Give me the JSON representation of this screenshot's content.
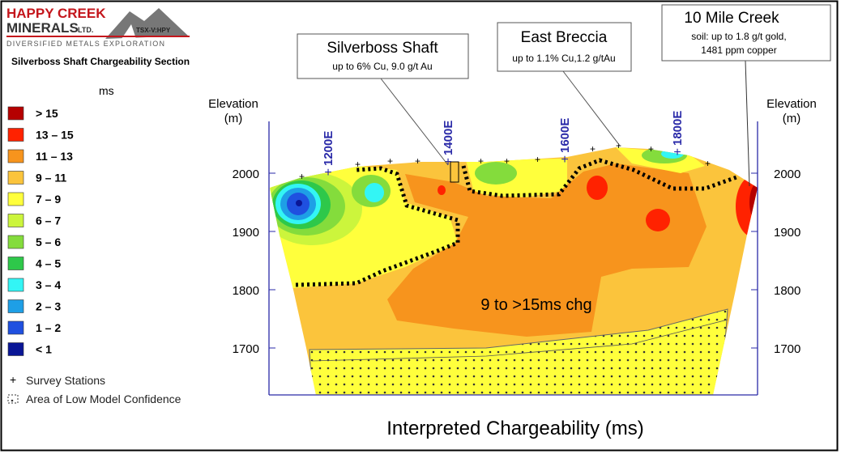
{
  "logo": {
    "line1": "HAPPY CREEK",
    "line2": "MINERALS",
    "suffix": "LTD.",
    "ticker": "TSX-V:HPY",
    "tagline": "DIVERSIFIED METALS EXPLORATION"
  },
  "section_title": "Silverboss Shaft Chargeability Section",
  "legend": {
    "unit": "ms",
    "items": [
      {
        "label": "> 15",
        "color": "#b50000"
      },
      {
        "label": "13 – 15",
        "color": "#ff2200"
      },
      {
        "label": "11 – 13",
        "color": "#f7941d"
      },
      {
        "label": "9 – 11",
        "color": "#fbc43c"
      },
      {
        "label": "7 – 9",
        "color": "#ffff3c"
      },
      {
        "label": "6 – 7",
        "color": "#ccf53c"
      },
      {
        "label": "5 – 6",
        "color": "#84dc3c"
      },
      {
        "label": "4 – 5",
        "color": "#2ec84a"
      },
      {
        "label": "3 – 4",
        "color": "#33f5f5"
      },
      {
        "label": "2 – 3",
        "color": "#1e9fe6"
      },
      {
        "label": "1 – 2",
        "color": "#1f50e0"
      },
      {
        "label": "< 1",
        "color": "#0a1696"
      }
    ],
    "survey_stations": "Survey Stations",
    "low_confidence": "Area of Low Model Confidence"
  },
  "elevation_label": "Elevation",
  "elevation_unit": "(m)",
  "elevation_ticks": [
    2000,
    1900,
    1800,
    1700
  ],
  "eastings": [
    "1200E",
    "1400E",
    "1600E",
    "1800E"
  ],
  "callouts": [
    {
      "title": "Silverboss Shaft",
      "lines": [
        "up to 6% Cu, 9.0 g/t Au"
      ]
    },
    {
      "title": "East Breccia",
      "lines": [
        "up to 1.1% Cu,1.2 g/tAu"
      ]
    },
    {
      "title": "10 Mile Creek",
      "lines": [
        "soil: up to 1.8 g/t gold,",
        "1481 ppm copper"
      ]
    }
  ],
  "annotation": "9 to >15ms chg",
  "caption": "Interpreted Chargeability (ms)"
}
